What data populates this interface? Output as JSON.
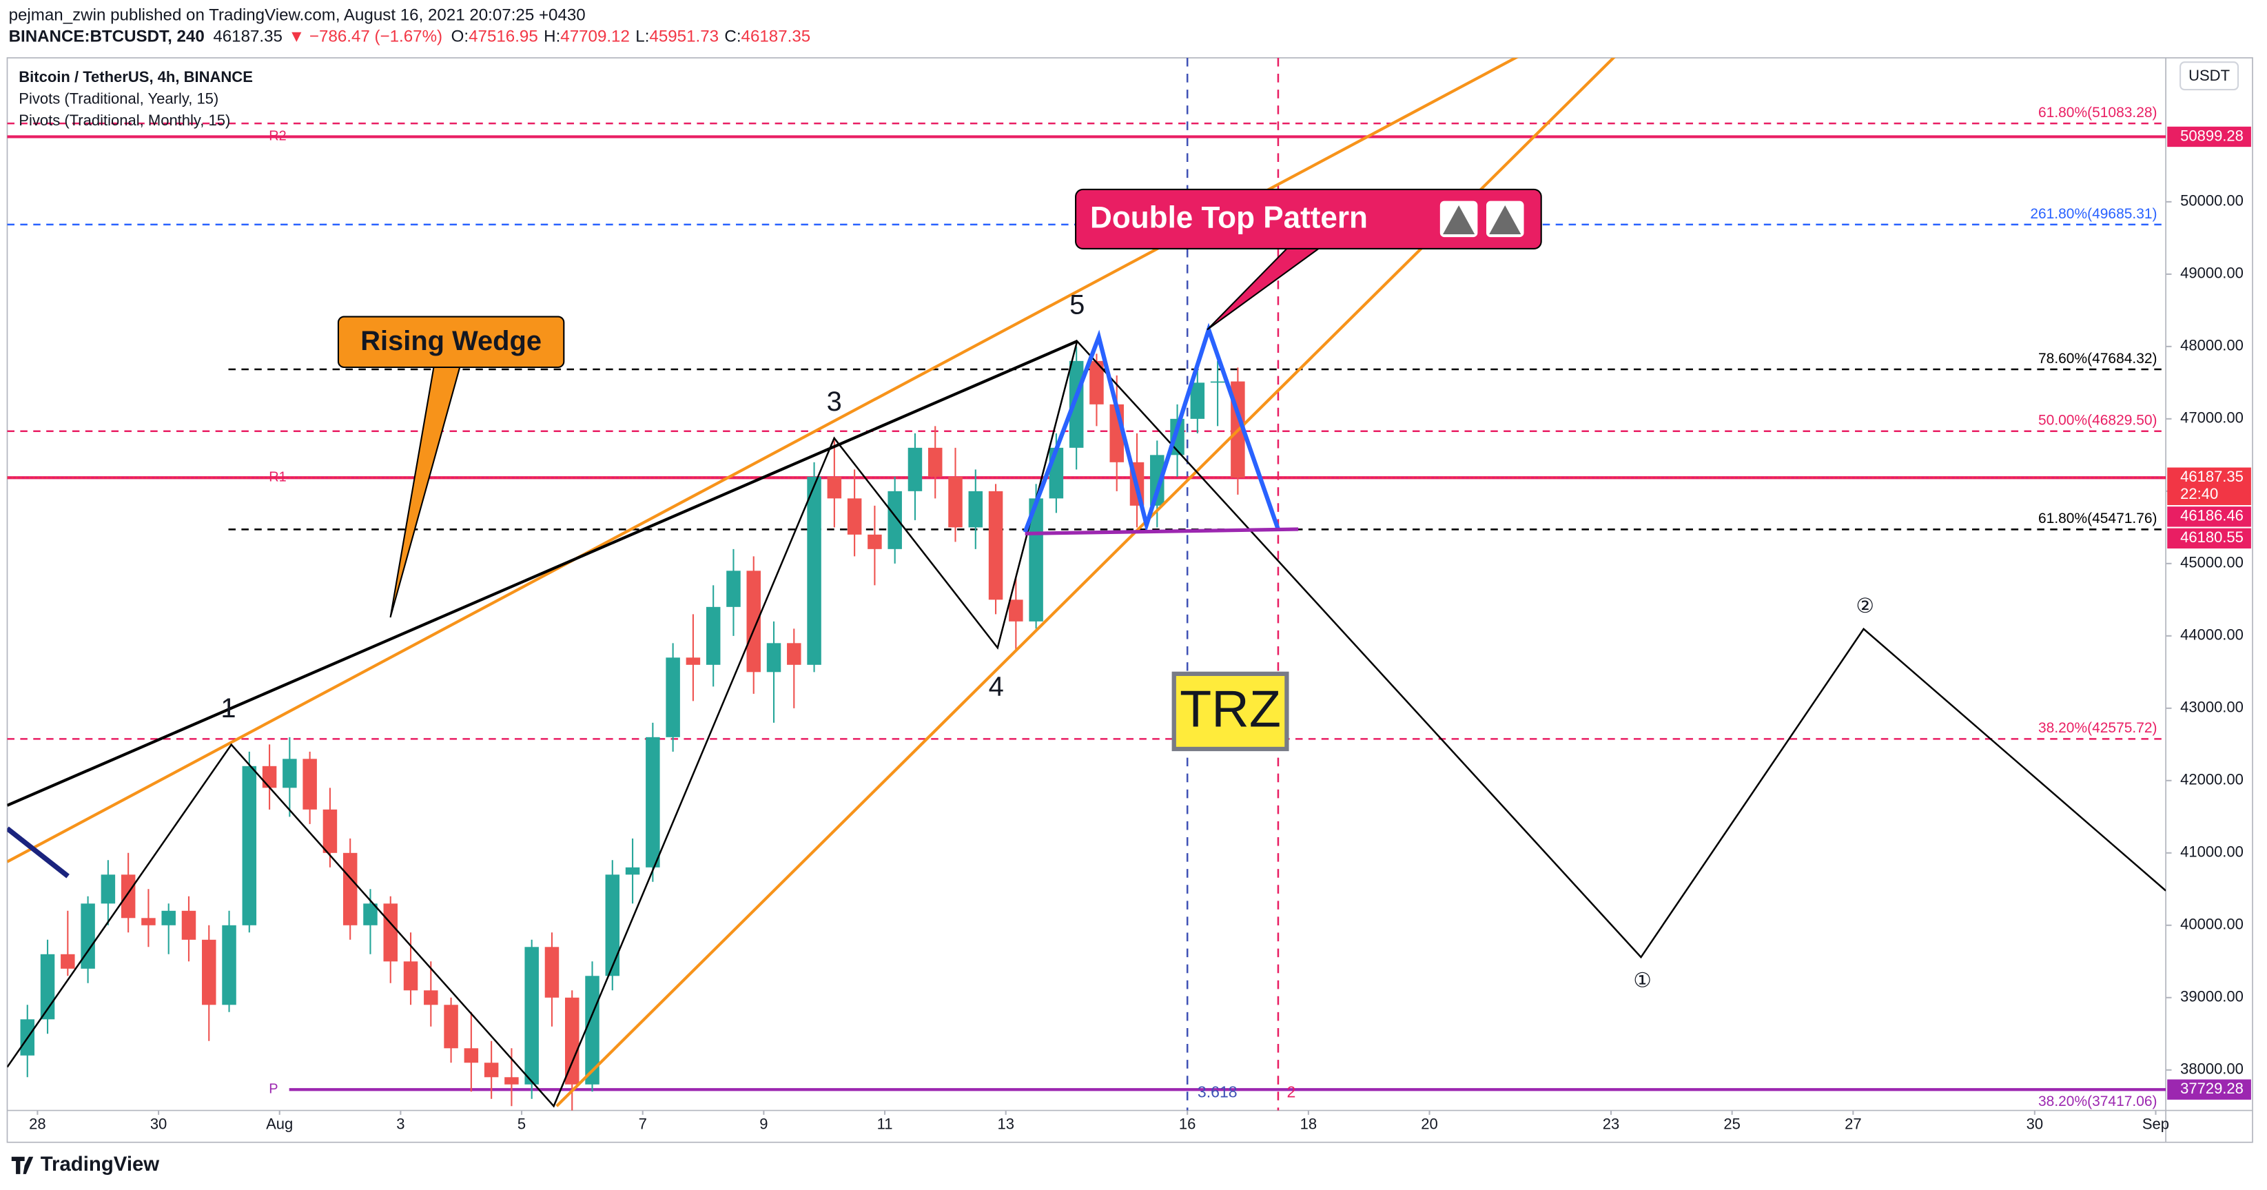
{
  "header": {
    "author_line": "pejman_zwin published on TradingView.com, August 16, 2021 20:07:25 +0430",
    "symbol": "BINANCE:BTCUSDT, 240",
    "last": "46187.35",
    "change": "▼ −786.47 (−1.67%)",
    "ohlc": [
      {
        "key": "O:",
        "value": "47516.95"
      },
      {
        "key": "H:",
        "value": "47709.12"
      },
      {
        "key": "L:",
        "value": "45951.73"
      },
      {
        "key": "C:",
        "value": "46187.35"
      }
    ]
  },
  "legend": [
    "Bitcoin / TetherUS, 4h, BINANCE",
    "Pivots (Traditional, Yearly, 15)",
    "Pivots (Traditional, Monthly, 15)"
  ],
  "currency": "USDT",
  "footer": "TradingView",
  "annotations": {
    "wedge": "Rising Wedge",
    "double_top": "Double Top Pattern",
    "trz": "TRZ",
    "waves": [
      "1",
      "3",
      "4",
      "5"
    ],
    "circled": [
      "①",
      "②"
    ]
  },
  "chart_data": {
    "type": "candlestick",
    "up_color": "#26a69a",
    "down_color": "#ef5350",
    "x": [
      "2021-07-27T16:00",
      "2021-07-28T00:00",
      "2021-07-28T08:00",
      "2021-07-28T16:00",
      "2021-07-29T00:00",
      "2021-07-29T08:00",
      "2021-07-29T16:00",
      "2021-07-30T00:00",
      "2021-07-30T08:00",
      "2021-07-30T16:00",
      "2021-07-31T00:00",
      "2021-07-31T08:00",
      "2021-07-31T16:00",
      "2021-08-01T00:00",
      "2021-08-01T08:00",
      "2021-08-01T16:00",
      "2021-08-02T00:00",
      "2021-08-02T08:00",
      "2021-08-02T16:00",
      "2021-08-03T00:00",
      "2021-08-03T08:00",
      "2021-08-03T16:00",
      "2021-08-04T00:00",
      "2021-08-04T08:00",
      "2021-08-04T16:00",
      "2021-08-05T00:00",
      "2021-08-05T08:00",
      "2021-08-05T16:00",
      "2021-08-06T00:00",
      "2021-08-06T08:00",
      "2021-08-06T16:00",
      "2021-08-07T00:00",
      "2021-08-07T08:00",
      "2021-08-07T16:00",
      "2021-08-08T00:00",
      "2021-08-08T08:00",
      "2021-08-08T16:00",
      "2021-08-09T00:00",
      "2021-08-09T08:00",
      "2021-08-09T16:00",
      "2021-08-10T00:00",
      "2021-08-10T08:00",
      "2021-08-10T16:00",
      "2021-08-11T00:00",
      "2021-08-11T08:00",
      "2021-08-11T16:00",
      "2021-08-12T00:00",
      "2021-08-12T08:00",
      "2021-08-12T16:00",
      "2021-08-13T00:00",
      "2021-08-13T08:00",
      "2021-08-13T16:00",
      "2021-08-14T00:00",
      "2021-08-14T08:00",
      "2021-08-14T16:00",
      "2021-08-15T00:00",
      "2021-08-15T08:00",
      "2021-08-15T16:00",
      "2021-08-16T00:00",
      "2021-08-16T08:00",
      "2021-08-16T16:00"
    ],
    "open": [
      38200,
      38700,
      39600,
      39400,
      40300,
      40700,
      40100,
      40000,
      40200,
      39800,
      38900,
      40000,
      42200,
      41900,
      42300,
      41600,
      41000,
      40000,
      40300,
      39500,
      39100,
      38900,
      38300,
      38100,
      37900,
      37800,
      39700,
      39000,
      37800,
      39300,
      40700,
      40800,
      42600,
      43700,
      43600,
      44400,
      44900,
      43500,
      43900,
      43600,
      46200,
      45900,
      45400,
      45200,
      46000,
      46600,
      46200,
      45500,
      46000,
      44500,
      44200,
      45900,
      46600,
      47800,
      47200,
      46400,
      45800,
      46500,
      47000,
      47500,
      47516.95
    ],
    "high": [
      38900,
      39800,
      40200,
      40400,
      40900,
      41000,
      40500,
      40300,
      40400,
      40000,
      40200,
      42400,
      42500,
      42600,
      42400,
      41900,
      41200,
      40500,
      40400,
      39900,
      39500,
      39000,
      38800,
      38400,
      38300,
      39800,
      39900,
      39100,
      39500,
      40900,
      41200,
      42800,
      43900,
      44300,
      44700,
      45200,
      45100,
      44200,
      44100,
      46400,
      46700,
      46300,
      45800,
      46200,
      46800,
      46900,
      46600,
      46300,
      46100,
      44800,
      46100,
      46800,
      48000,
      47900,
      47600,
      46800,
      46700,
      47200,
      47700,
      47800,
      47709.12
    ],
    "low": [
      37900,
      38500,
      39300,
      39200,
      40000,
      39900,
      39700,
      39600,
      39500,
      38400,
      38800,
      39900,
      41600,
      41500,
      41400,
      40800,
      39800,
      39600,
      39200,
      38900,
      38600,
      38100,
      37700,
      37600,
      37500,
      37600,
      38600,
      37400,
      37700,
      39100,
      40300,
      40600,
      42400,
      43100,
      43300,
      44000,
      43200,
      42800,
      43000,
      43500,
      45500,
      45100,
      44700,
      45000,
      45600,
      45900,
      45300,
      45200,
      44300,
      43800,
      44100,
      45700,
      46300,
      46900,
      46000,
      45500,
      45500,
      46200,
      46800,
      46900,
      45951.73
    ],
    "close": [
      38700,
      39600,
      39400,
      40300,
      40700,
      40100,
      40000,
      40200,
      39800,
      38900,
      40000,
      42200,
      41900,
      42300,
      41600,
      41000,
      40000,
      40300,
      39500,
      39100,
      38900,
      38300,
      38100,
      37900,
      37800,
      39700,
      39000,
      37800,
      39300,
      40700,
      40800,
      42600,
      43700,
      43600,
      44400,
      44900,
      43500,
      43900,
      43600,
      46200,
      45900,
      45400,
      45200,
      46000,
      46600,
      46200,
      45500,
      46000,
      44500,
      44200,
      45900,
      46600,
      47800,
      47200,
      46400,
      45800,
      46500,
      47000,
      47500,
      47516.95,
      46187.35
    ],
    "xlim": [
      "2021-07-27T12:00",
      "2021-09-01T04:00"
    ],
    "xticks": [
      {
        "value": "2021-07-28T00:00",
        "label": "28"
      },
      {
        "value": "2021-07-30T00:00",
        "label": "30"
      },
      {
        "value": "2021-08-01T00:00",
        "label": "Aug"
      },
      {
        "value": "2021-08-03T00:00",
        "label": "3"
      },
      {
        "value": "2021-08-05T00:00",
        "label": "5"
      },
      {
        "value": "2021-08-07T00:00",
        "label": "7"
      },
      {
        "value": "2021-08-09T00:00",
        "label": "9"
      },
      {
        "value": "2021-08-11T00:00",
        "label": "11"
      },
      {
        "value": "2021-08-13T00:00",
        "label": "13"
      },
      {
        "value": "2021-08-16T00:00",
        "label": "16"
      },
      {
        "value": "2021-08-18T00:00",
        "label": "18"
      },
      {
        "value": "2021-08-20T00:00",
        "label": "20"
      },
      {
        "value": "2021-08-23T00:00",
        "label": "23"
      },
      {
        "value": "2021-08-25T00:00",
        "label": "25"
      },
      {
        "value": "2021-08-27T00:00",
        "label": "27"
      },
      {
        "value": "2021-08-30T00:00",
        "label": "30"
      },
      {
        "value": "2021-09-01T00:00",
        "label": "Sep"
      }
    ],
    "ylim": [
      37440,
      51990
    ],
    "yticks": [
      {
        "value": 50000,
        "label": "50000.00"
      },
      {
        "value": 49000,
        "label": "49000.00"
      },
      {
        "value": 48000,
        "label": "48000.00"
      },
      {
        "value": 47000,
        "label": "47000.00"
      },
      {
        "value": 46000,
        "label": "46000.00"
      },
      {
        "value": 45000,
        "label": "45000.00"
      },
      {
        "value": 44000,
        "label": "44000.00"
      },
      {
        "value": 43000,
        "label": "43000.00"
      },
      {
        "value": 42000,
        "label": "42000.00"
      },
      {
        "value": 41000,
        "label": "41000.00"
      },
      {
        "value": 40000,
        "label": "40000.00"
      },
      {
        "value": 39000,
        "label": "39000.00"
      },
      {
        "value": 38000,
        "label": "38000.00"
      }
    ],
    "levels": [
      {
        "label": "61.80%(51083.28)",
        "value": 51083.28,
        "color": "#e91e63"
      },
      {
        "label": "261.80%(49685.31)",
        "value": 49685.31,
        "color": "#2962ff"
      },
      {
        "label": "78.60%(47684.32)",
        "value": 47684.32,
        "color": "#000000"
      },
      {
        "label": "50.00%(46829.50)",
        "value": 46829.5,
        "color": "#e91e63"
      },
      {
        "label": "61.80%(45471.76)",
        "value": 45471.76,
        "color": "#000000"
      },
      {
        "label": "38.20%(42575.72)",
        "value": 42575.72,
        "color": "#e91e63"
      },
      {
        "label": "38.20%(37417.06)",
        "value": 37417.06,
        "color": "#9c27b0"
      }
    ],
    "pivots": [
      {
        "name": "R2",
        "value": 50899.28,
        "color": "#e91e63"
      },
      {
        "name": "R1",
        "value": 46186.46,
        "color": "#e91e63"
      },
      {
        "name": "P",
        "value": 37729.28,
        "color": "#9c27b0"
      }
    ],
    "last_price": {
      "value": 46187.35,
      "countdown": "22:40",
      "color": "#f23645"
    },
    "price_tags": [
      {
        "value": 46180.55,
        "color": "#e91e63"
      }
    ],
    "time_markers": [
      {
        "x": "2021-08-16T00:00",
        "label": "3.618",
        "color": "#3f51b5"
      },
      {
        "x": "2021-08-17T12:00",
        "label": "2",
        "color": "#e91e63"
      }
    ]
  }
}
